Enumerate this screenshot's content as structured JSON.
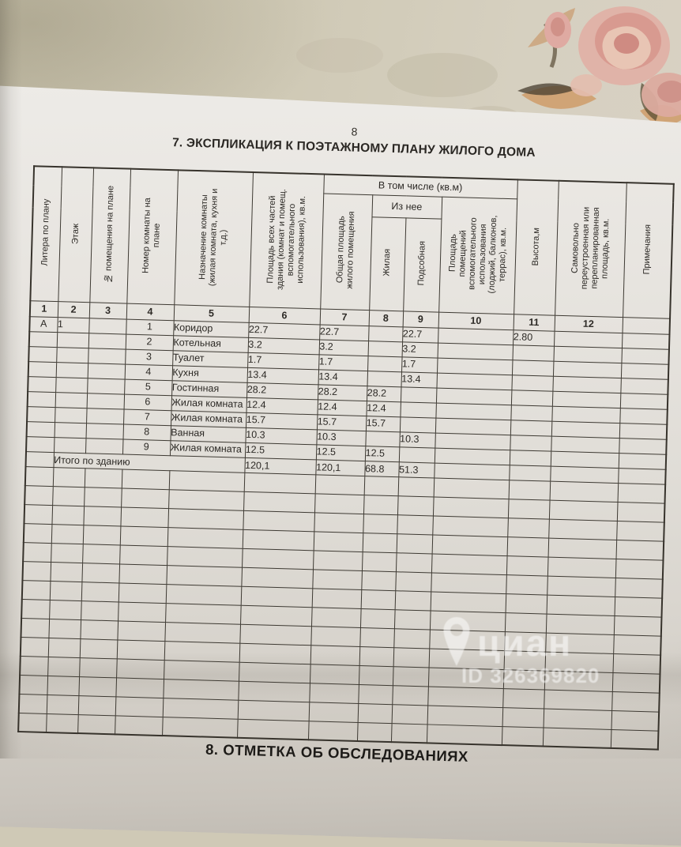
{
  "page": {
    "number": "8",
    "title": "7. ЭКСПЛИКАЦИЯ К ПОЭТАЖНОМУ ПЛАНУ ЖИЛОГО ДОМА",
    "bottom_section_title": "8. ОТМЕТКА ОБ ОБСЛЕДОВАНИЯХ"
  },
  "watermark": {
    "logo_text": "циан",
    "id_text": "ID 326369820"
  },
  "colors": {
    "paper": "#e7e4df",
    "fabric": "#cfc9b6",
    "table_line": "#3e3a33",
    "watermark": "#ffffff"
  },
  "table": {
    "group_headers": {
      "v_tom_chisle": "В том числе (кв.м)",
      "iz_nee": "Из нее"
    },
    "columns": [
      {
        "num": "1",
        "label": "Литера по плану"
      },
      {
        "num": "2",
        "label": "Этаж"
      },
      {
        "num": "3",
        "label": "№ помещения на плане"
      },
      {
        "num": "4",
        "label": "Номер комнаты на\nплане"
      },
      {
        "num": "5",
        "label": "Назначение комнаты\n(жилая комната, кухня и\nт.д.)"
      },
      {
        "num": "6",
        "label": "Площадь всех частей\nздания (комнат и помещ.\nвспомогательного\nиспользования), кв.м."
      },
      {
        "num": "7",
        "label": "Общая площадь\nжилого помещения"
      },
      {
        "num": "8",
        "label": "Жилая"
      },
      {
        "num": "9",
        "label": "Подсобная"
      },
      {
        "num": "10",
        "label": "Площадь\nпомещений\nвспомогательного\nиспользования\n(лоджий, балконов,\nтеррас), кв.м."
      },
      {
        "num": "11",
        "label": "Высота,м"
      },
      {
        "num": "12",
        "label": "Самовольно\nпереустроенная или\nперепланированная\nплощадь, кв.м."
      },
      {
        "num": "",
        "label": "Примечания"
      }
    ],
    "rows": [
      {
        "litera": "А",
        "etazh": "1",
        "pom": "",
        "komnata": "1",
        "name": "Коридор",
        "total": "22.7",
        "obshaya": "22.7",
        "zhilaya": "",
        "podsobnaya": "22.7",
        "vspom": "",
        "vysota": "2.80",
        "samovolno": "",
        "prim": ""
      },
      {
        "litera": "",
        "etazh": "",
        "pom": "",
        "komnata": "2",
        "name": "Котельная",
        "total": "3.2",
        "obshaya": "3.2",
        "zhilaya": "",
        "podsobnaya": "3.2",
        "vspom": "",
        "vysota": "",
        "samovolno": "",
        "prim": ""
      },
      {
        "litera": "",
        "etazh": "",
        "pom": "",
        "komnata": "3",
        "name": "Туалет",
        "total": "1.7",
        "obshaya": "1.7",
        "zhilaya": "",
        "podsobnaya": "1.7",
        "vspom": "",
        "vysota": "",
        "samovolno": "",
        "prim": ""
      },
      {
        "litera": "",
        "etazh": "",
        "pom": "",
        "komnata": "4",
        "name": "Кухня",
        "total": "13.4",
        "obshaya": "13.4",
        "zhilaya": "",
        "podsobnaya": "13.4",
        "vspom": "",
        "vysota": "",
        "samovolno": "",
        "prim": ""
      },
      {
        "litera": "",
        "etazh": "",
        "pom": "",
        "komnata": "5",
        "name": "Гостинная",
        "total": "28.2",
        "obshaya": "28.2",
        "zhilaya": "28.2",
        "podsobnaya": "",
        "vspom": "",
        "vysota": "",
        "samovolno": "",
        "prim": ""
      },
      {
        "litera": "",
        "etazh": "",
        "pom": "",
        "komnata": "6",
        "name": "Жилая комната",
        "total": "12.4",
        "obshaya": "12.4",
        "zhilaya": "12.4",
        "podsobnaya": "",
        "vspom": "",
        "vysota": "",
        "samovolno": "",
        "prim": ""
      },
      {
        "litera": "",
        "etazh": "",
        "pom": "",
        "komnata": "7",
        "name": "Жилая комната",
        "total": "15.7",
        "obshaya": "15.7",
        "zhilaya": "15.7",
        "podsobnaya": "",
        "vspom": "",
        "vysota": "",
        "samovolno": "",
        "prim": ""
      },
      {
        "litera": "",
        "etazh": "",
        "pom": "",
        "komnata": "8",
        "name": "Ванная",
        "total": "10.3",
        "obshaya": "10.3",
        "zhilaya": "",
        "podsobnaya": "10.3",
        "vspom": "",
        "vysota": "",
        "samovolno": "",
        "prim": ""
      },
      {
        "litera": "",
        "etazh": "",
        "pom": "",
        "komnata": "9",
        "name": "Жилая комната",
        "total": "12.5",
        "obshaya": "12.5",
        "zhilaya": "12.5",
        "podsobnaya": "",
        "vspom": "",
        "vysota": "",
        "samovolno": "",
        "prim": ""
      }
    ],
    "total_row": {
      "label": "Итого по зданию",
      "total": "120,1",
      "obshaya": "120,1",
      "zhilaya": "68.8",
      "podsobnaya": "51.3"
    },
    "empty_row_count": 14
  }
}
